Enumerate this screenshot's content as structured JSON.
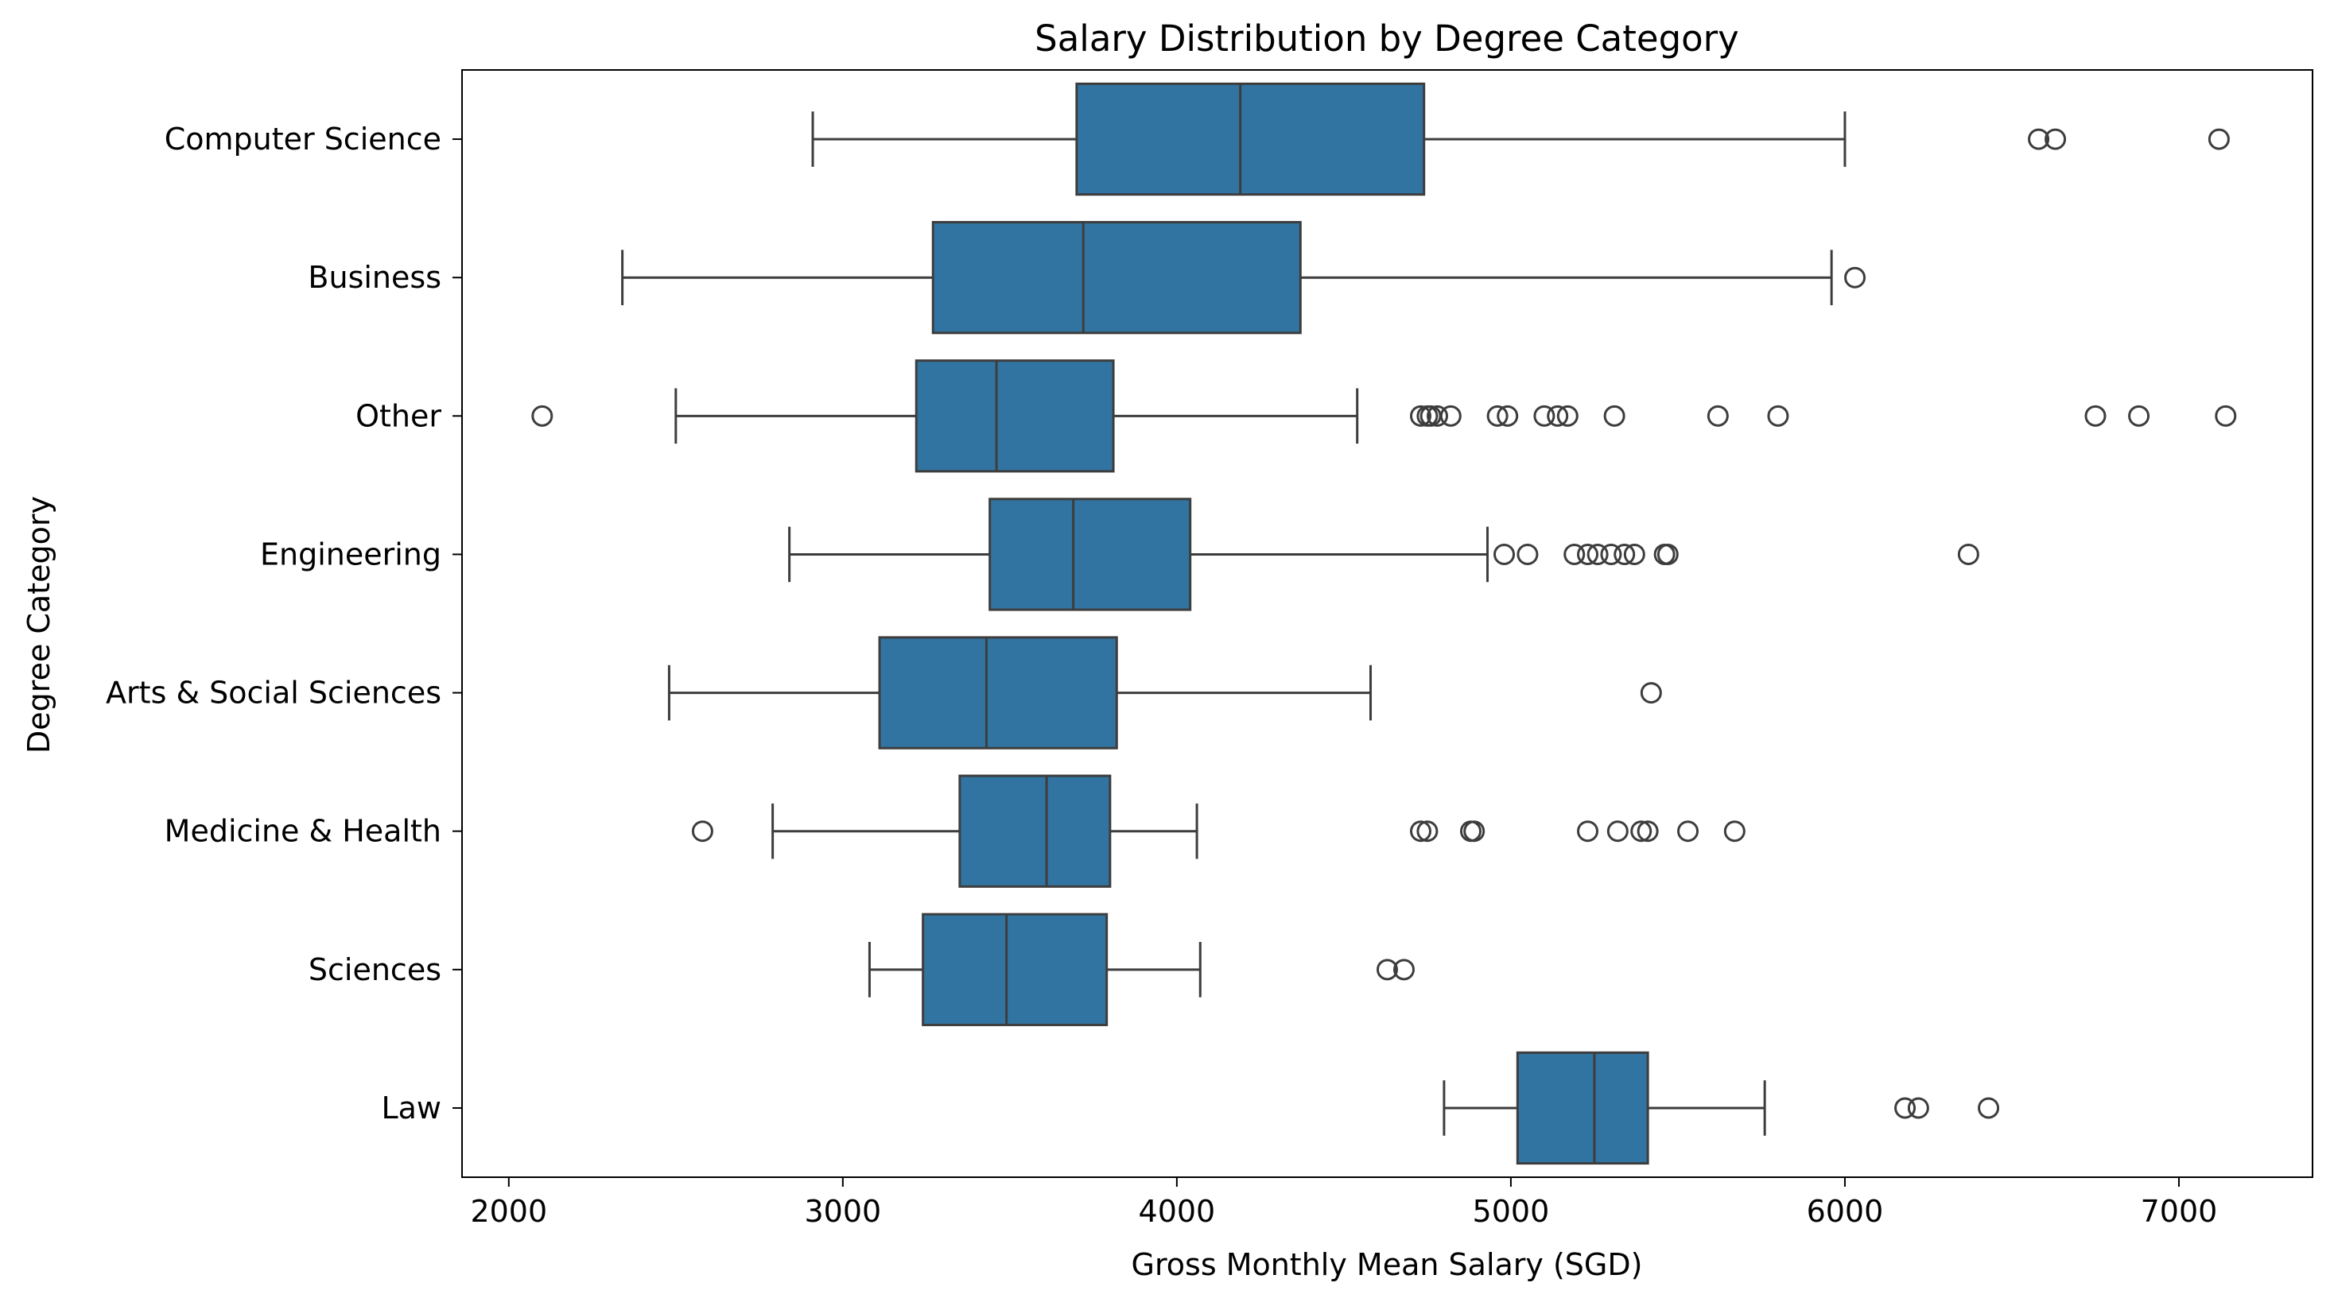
{
  "chart_data": {
    "type": "boxplot",
    "title": "Salary Distribution by Degree Category",
    "xlabel": "Gross Monthly Mean Salary (SGD)",
    "ylabel": "Degree Category",
    "xlim": [
      1860,
      7400
    ],
    "xticks": [
      2000,
      3000,
      4000,
      5000,
      6000,
      7000
    ],
    "grid": false,
    "box_color": "#3274a1",
    "line_color": "#3d3d3d",
    "categories": [
      "Computer Science",
      "Business",
      "Other",
      "Engineering",
      "Arts & Social Sciences",
      "Medicine & Health",
      "Sciences",
      "Law"
    ],
    "boxes": [
      {
        "whisker_low": 2910,
        "q1": 3700,
        "median": 4190,
        "q3": 4740,
        "whisker_high": 6000,
        "outliers": [
          6580,
          6630,
          7120
        ]
      },
      {
        "whisker_low": 2340,
        "q1": 3270,
        "median": 3720,
        "q3": 4370,
        "whisker_high": 5960,
        "outliers": [
          6030
        ]
      },
      {
        "whisker_low": 2500,
        "q1": 3220,
        "median": 3460,
        "q3": 3810,
        "whisker_high": 4540,
        "outliers": [
          2100,
          4730,
          4750,
          4760,
          4780,
          4820,
          4960,
          4990,
          5100,
          5140,
          5170,
          5310,
          5620,
          5800,
          6750,
          6880,
          7140
        ]
      },
      {
        "whisker_low": 2840,
        "q1": 3440,
        "median": 3690,
        "q3": 4040,
        "whisker_high": 4930,
        "outliers": [
          4980,
          5050,
          5190,
          5230,
          5260,
          5300,
          5340,
          5370,
          5460,
          5470,
          6370
        ]
      },
      {
        "whisker_low": 2480,
        "q1": 3110,
        "median": 3430,
        "q3": 3820,
        "whisker_high": 4580,
        "outliers": [
          5420
        ]
      },
      {
        "whisker_low": 2790,
        "q1": 3350,
        "median": 3610,
        "q3": 3800,
        "whisker_high": 4060,
        "outliers": [
          2580,
          4730,
          4750,
          4880,
          4890,
          5230,
          5320,
          5390,
          5410,
          5530,
          5670
        ]
      },
      {
        "whisker_low": 3080,
        "q1": 3240,
        "median": 3490,
        "q3": 3790,
        "whisker_high": 4070,
        "outliers": [
          4630,
          4680
        ]
      },
      {
        "whisker_low": 4800,
        "q1": 5020,
        "median": 5250,
        "q3": 5410,
        "whisker_high": 5760,
        "outliers": [
          6180,
          6220,
          6430
        ]
      }
    ]
  }
}
